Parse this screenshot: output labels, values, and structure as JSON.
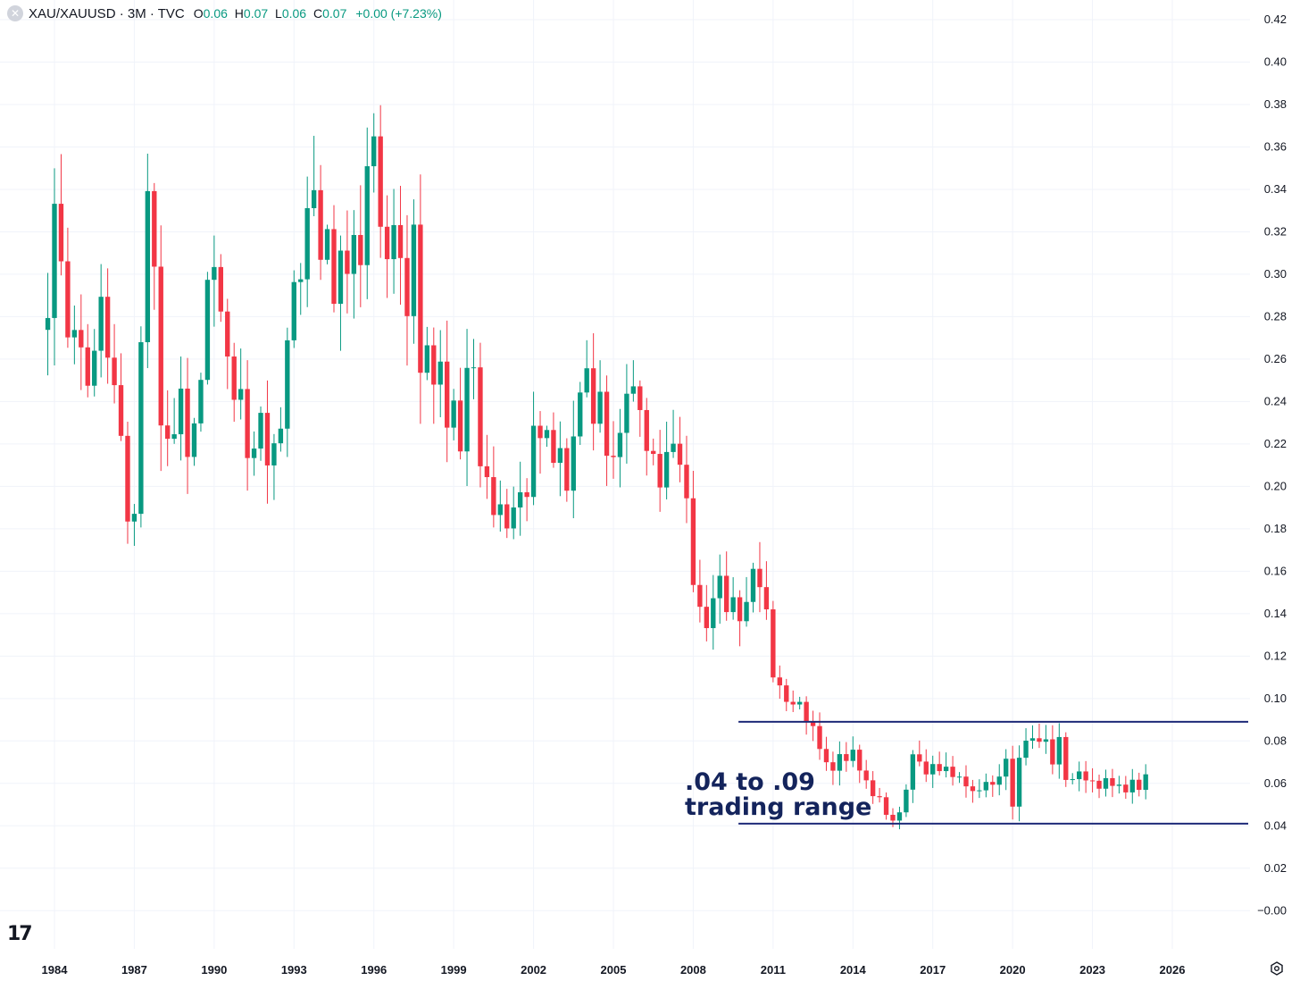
{
  "legend": {
    "symbol": "XAU/XAUUSD · 3M · TVC",
    "o_key": "O",
    "o_val": "0.06",
    "h_key": "H",
    "h_val": "0.07",
    "l_key": "L",
    "l_val": "0.06",
    "c_key": "C",
    "c_val": "0.07",
    "change": "+0.00 (+7.23%)"
  },
  "annotation": {
    "line1": ".04 to .09",
    "line2": "trading range"
  },
  "branding": {
    "logo_text": "17"
  },
  "icons": {
    "close": "close-icon",
    "settings": "settings-icon",
    "logo": "tradingview-logo"
  },
  "colors": {
    "up": "#089981",
    "down": "#f23645",
    "range_line": "#1e2a78",
    "annotation": "#14245c",
    "grid": "#f0f3fa",
    "text": "#131722"
  },
  "chart_data": {
    "type": "candlestick",
    "interval": "3M",
    "title": "XAU/XAUUSD · 3M · TVC",
    "ylim": [
      -0.01,
      0.42
    ],
    "y_ticks": [
      "0.42",
      "0.40",
      "0.38",
      "0.36",
      "0.34",
      "0.32",
      "0.30",
      "0.28",
      "0.26",
      "0.24",
      "0.22",
      "0.20",
      "0.18",
      "0.16",
      "0.14",
      "0.12",
      "0.10",
      "0.08",
      "0.06",
      "0.04",
      "0.02",
      "−0.00"
    ],
    "y_tick_values": [
      0.42,
      0.4,
      0.38,
      0.36,
      0.34,
      0.32,
      0.3,
      0.28,
      0.26,
      0.24,
      0.22,
      0.2,
      0.18,
      0.16,
      0.14,
      0.12,
      0.1,
      0.08,
      0.06,
      0.04,
      0.02,
      0.0
    ],
    "x_ticks": [
      "1984",
      "1987",
      "1990",
      "1993",
      "1996",
      "1999",
      "2002",
      "2005",
      "2008",
      "2011",
      "2014",
      "2017",
      "2020",
      "2023",
      "2026"
    ],
    "x_tick_values": [
      1984,
      1987,
      1990,
      1993,
      1996,
      1999,
      2002,
      2005,
      2008,
      2011,
      2014,
      2017,
      2020,
      2023,
      2026
    ],
    "xlim": [
      1983.0,
      2029.0
    ],
    "horizontal_lines": [
      {
        "value": 0.089,
        "from": 2009.7,
        "to": 2029.0
      },
      {
        "value": 0.041,
        "from": 2009.7,
        "to": 2029.0
      }
    ],
    "close_anchors": [
      [
        1983.75,
        0.288
      ],
      [
        1984.0,
        0.325
      ],
      [
        1984.25,
        0.31
      ],
      [
        1984.5,
        0.275
      ],
      [
        1984.75,
        0.27
      ],
      [
        1985.0,
        0.265
      ],
      [
        1985.25,
        0.25
      ],
      [
        1985.5,
        0.26
      ],
      [
        1985.75,
        0.285
      ],
      [
        1986.0,
        0.26
      ],
      [
        1986.25,
        0.245
      ],
      [
        1986.5,
        0.222
      ],
      [
        1986.75,
        0.18
      ],
      [
        1987.0,
        0.19
      ],
      [
        1987.25,
        0.27
      ],
      [
        1987.5,
        0.335
      ],
      [
        1987.75,
        0.3
      ],
      [
        1988.0,
        0.235
      ],
      [
        1988.25,
        0.22
      ],
      [
        1988.5,
        0.225
      ],
      [
        1988.75,
        0.24
      ],
      [
        1989.0,
        0.21
      ],
      [
        1989.25,
        0.235
      ],
      [
        1989.5,
        0.25
      ],
      [
        1989.75,
        0.29
      ],
      [
        1990.0,
        0.3
      ],
      [
        1990.25,
        0.28
      ],
      [
        1990.5,
        0.26
      ],
      [
        1990.75,
        0.235
      ],
      [
        1991.0,
        0.24
      ],
      [
        1991.25,
        0.215
      ],
      [
        1991.5,
        0.22
      ],
      [
        1991.75,
        0.23
      ],
      [
        1992.0,
        0.212
      ],
      [
        1992.25,
        0.225
      ],
      [
        1992.5,
        0.23
      ],
      [
        1992.75,
        0.27
      ],
      [
        1993.0,
        0.3
      ],
      [
        1993.25,
        0.29
      ],
      [
        1993.5,
        0.33
      ],
      [
        1993.75,
        0.335
      ],
      [
        1994.0,
        0.3
      ],
      [
        1994.25,
        0.33
      ],
      [
        1994.5,
        0.29
      ],
      [
        1994.75,
        0.31
      ],
      [
        1995.0,
        0.3
      ],
      [
        1995.25,
        0.32
      ],
      [
        1995.5,
        0.31
      ],
      [
        1996.0,
        0.375
      ],
      [
        1996.25,
        0.325
      ],
      [
        1996.5,
        0.31
      ],
      [
        1996.75,
        0.32
      ],
      [
        1997.0,
        0.3
      ],
      [
        1997.25,
        0.28
      ],
      [
        1997.5,
        0.33
      ],
      [
        1997.75,
        0.255
      ],
      [
        1998.0,
        0.27
      ],
      [
        1998.25,
        0.25
      ],
      [
        1998.5,
        0.26
      ],
      [
        1998.75,
        0.23
      ],
      [
        1999.0,
        0.24
      ],
      [
        1999.25,
        0.215
      ],
      [
        1999.5,
        0.26
      ],
      [
        1999.75,
        0.25
      ],
      [
        2000.0,
        0.21
      ],
      [
        2000.25,
        0.2
      ],
      [
        2000.5,
        0.185
      ],
      [
        2000.75,
        0.19
      ],
      [
        2001.0,
        0.18
      ],
      [
        2001.25,
        0.19
      ],
      [
        2001.5,
        0.195
      ],
      [
        2001.75,
        0.19
      ],
      [
        2002.0,
        0.23
      ],
      [
        2002.25,
        0.22
      ],
      [
        2002.5,
        0.23
      ],
      [
        2002.75,
        0.21
      ],
      [
        2003.0,
        0.22
      ],
      [
        2003.25,
        0.2
      ],
      [
        2003.5,
        0.225
      ],
      [
        2003.75,
        0.24
      ],
      [
        2004.0,
        0.25
      ],
      [
        2004.25,
        0.235
      ],
      [
        2004.5,
        0.24
      ],
      [
        2004.75,
        0.22
      ],
      [
        2005.0,
        0.215
      ],
      [
        2005.25,
        0.23
      ],
      [
        2005.5,
        0.25
      ],
      [
        2005.75,
        0.24
      ],
      [
        2006.0,
        0.24
      ],
      [
        2006.25,
        0.215
      ],
      [
        2006.5,
        0.22
      ],
      [
        2006.75,
        0.2
      ],
      [
        2007.0,
        0.215
      ],
      [
        2007.25,
        0.225
      ],
      [
        2007.5,
        0.205
      ],
      [
        2007.75,
        0.19
      ],
      [
        2008.0,
        0.15
      ],
      [
        2008.25,
        0.14
      ],
      [
        2008.5,
        0.13
      ],
      [
        2008.75,
        0.145
      ],
      [
        2009.0,
        0.16
      ],
      [
        2009.25,
        0.145
      ],
      [
        2009.5,
        0.15
      ],
      [
        2009.75,
        0.14
      ],
      [
        2010.0,
        0.15
      ],
      [
        2010.25,
        0.16
      ],
      [
        2010.5,
        0.155
      ],
      [
        2010.75,
        0.14
      ],
      [
        2011.0,
        0.11
      ],
      [
        2011.25,
        0.105
      ],
      [
        2011.5,
        0.1
      ],
      [
        2011.75,
        0.095
      ],
      [
        2012.0,
        0.1
      ],
      [
        2012.25,
        0.09
      ],
      [
        2012.5,
        0.085
      ],
      [
        2012.75,
        0.078
      ],
      [
        2013.0,
        0.07
      ],
      [
        2013.25,
        0.068
      ],
      [
        2013.5,
        0.072
      ],
      [
        2013.75,
        0.07
      ],
      [
        2014.0,
        0.074
      ],
      [
        2014.25,
        0.068
      ],
      [
        2014.5,
        0.06
      ],
      [
        2014.75,
        0.055
      ],
      [
        2015.0,
        0.052
      ],
      [
        2015.25,
        0.045
      ],
      [
        2015.5,
        0.042
      ],
      [
        2015.75,
        0.047
      ],
      [
        2016.0,
        0.058
      ],
      [
        2016.25,
        0.075
      ],
      [
        2016.5,
        0.07
      ],
      [
        2016.75,
        0.066
      ],
      [
        2017.0,
        0.068
      ],
      [
        2017.25,
        0.065
      ],
      [
        2017.5,
        0.067
      ],
      [
        2017.75,
        0.063
      ],
      [
        2018.0,
        0.065
      ],
      [
        2018.25,
        0.06
      ],
      [
        2018.5,
        0.055
      ],
      [
        2018.75,
        0.058
      ],
      [
        2019.0,
        0.06
      ],
      [
        2019.25,
        0.058
      ],
      [
        2019.5,
        0.065
      ],
      [
        2019.75,
        0.07
      ],
      [
        2020.0,
        0.048
      ],
      [
        2020.25,
        0.07
      ],
      [
        2020.5,
        0.078
      ],
      [
        2020.75,
        0.08
      ],
      [
        2021.0,
        0.08
      ],
      [
        2021.25,
        0.082
      ],
      [
        2021.5,
        0.068
      ],
      [
        2021.75,
        0.08
      ],
      [
        2022.0,
        0.062
      ],
      [
        2022.25,
        0.063
      ],
      [
        2022.5,
        0.066
      ],
      [
        2022.75,
        0.06
      ],
      [
        2023.0,
        0.061
      ],
      [
        2023.25,
        0.058
      ],
      [
        2023.5,
        0.062
      ],
      [
        2023.75,
        0.058
      ],
      [
        2024.0,
        0.06
      ],
      [
        2024.25,
        0.055
      ],
      [
        2024.5,
        0.062
      ],
      [
        2024.75,
        0.058
      ],
      [
        2025.0,
        0.065
      ]
    ]
  }
}
